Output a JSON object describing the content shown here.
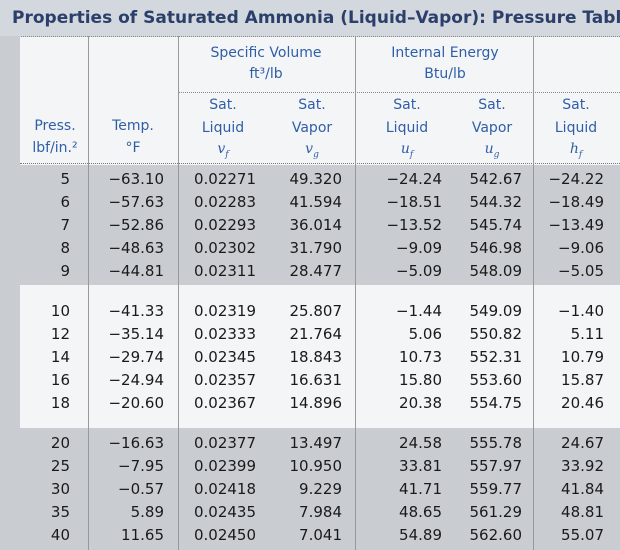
{
  "title": "Properties of Saturated Ammonia (Liquid–Vapor): Pressure Table",
  "header": {
    "groups": [
      {
        "title": "Specific Volume",
        "unit": "ft³/lb"
      },
      {
        "title": "Internal Energy",
        "unit": "Btu/lb"
      }
    ],
    "columns": [
      {
        "lines": [
          "Press.",
          "lbf/in.²"
        ]
      },
      {
        "lines": [
          "Temp.",
          "°F"
        ]
      },
      {
        "lines": [
          "Sat.",
          "Liquid"
        ],
        "symbol": "v",
        "sub": "f"
      },
      {
        "lines": [
          "Sat.",
          "Vapor"
        ],
        "symbol": "v",
        "sub": "g"
      },
      {
        "lines": [
          "Sat.",
          "Liquid"
        ],
        "symbol": "u",
        "sub": "f"
      },
      {
        "lines": [
          "Sat.",
          "Vapor"
        ],
        "symbol": "u",
        "sub": "g"
      },
      {
        "lines": [
          "Sat.",
          "Liquid"
        ],
        "symbol": "h",
        "sub": "f"
      }
    ]
  },
  "row_groups": [
    [
      [
        "5",
        "−63.10",
        "0.02271",
        "49.320",
        "−24.24",
        "542.67",
        "−24.22"
      ],
      [
        "6",
        "−57.63",
        "0.02283",
        "41.594",
        "−18.51",
        "544.32",
        "−18.49"
      ],
      [
        "7",
        "−52.86",
        "0.02293",
        "36.014",
        "−13.52",
        "545.74",
        "−13.49"
      ],
      [
        "8",
        "−48.63",
        "0.02302",
        "31.790",
        "−9.09",
        "546.98",
        "−9.06"
      ],
      [
        "9",
        "−44.81",
        "0.02311",
        "28.477",
        "−5.09",
        "548.09",
        "−5.05"
      ]
    ],
    [
      [
        "10",
        "−41.33",
        "0.02319",
        "25.807",
        "−1.44",
        "549.09",
        "−1.40"
      ],
      [
        "12",
        "−35.14",
        "0.02333",
        "21.764",
        "5.06",
        "550.82",
        "5.11"
      ],
      [
        "14",
        "−29.74",
        "0.02345",
        "18.843",
        "10.73",
        "552.31",
        "10.79"
      ],
      [
        "16",
        "−24.94",
        "0.02357",
        "16.631",
        "15.80",
        "553.60",
        "15.87"
      ],
      [
        "18",
        "−20.60",
        "0.02367",
        "14.896",
        "20.38",
        "554.75",
        "20.46"
      ]
    ],
    [
      [
        "20",
        "−16.63",
        "0.02377",
        "13.497",
        "24.58",
        "555.78",
        "24.67"
      ],
      [
        "25",
        "−7.95",
        "0.02399",
        "10.950",
        "33.81",
        "557.97",
        "33.92"
      ],
      [
        "30",
        "−0.57",
        "0.02418",
        "9.229",
        "41.71",
        "559.77",
        "41.84"
      ],
      [
        "35",
        "5.89",
        "0.02435",
        "7.984",
        "48.65",
        "561.29",
        "48.81"
      ],
      [
        "40",
        "11.65",
        "0.02450",
        "7.041",
        "54.89",
        "562.60",
        "55.07"
      ]
    ]
  ]
}
